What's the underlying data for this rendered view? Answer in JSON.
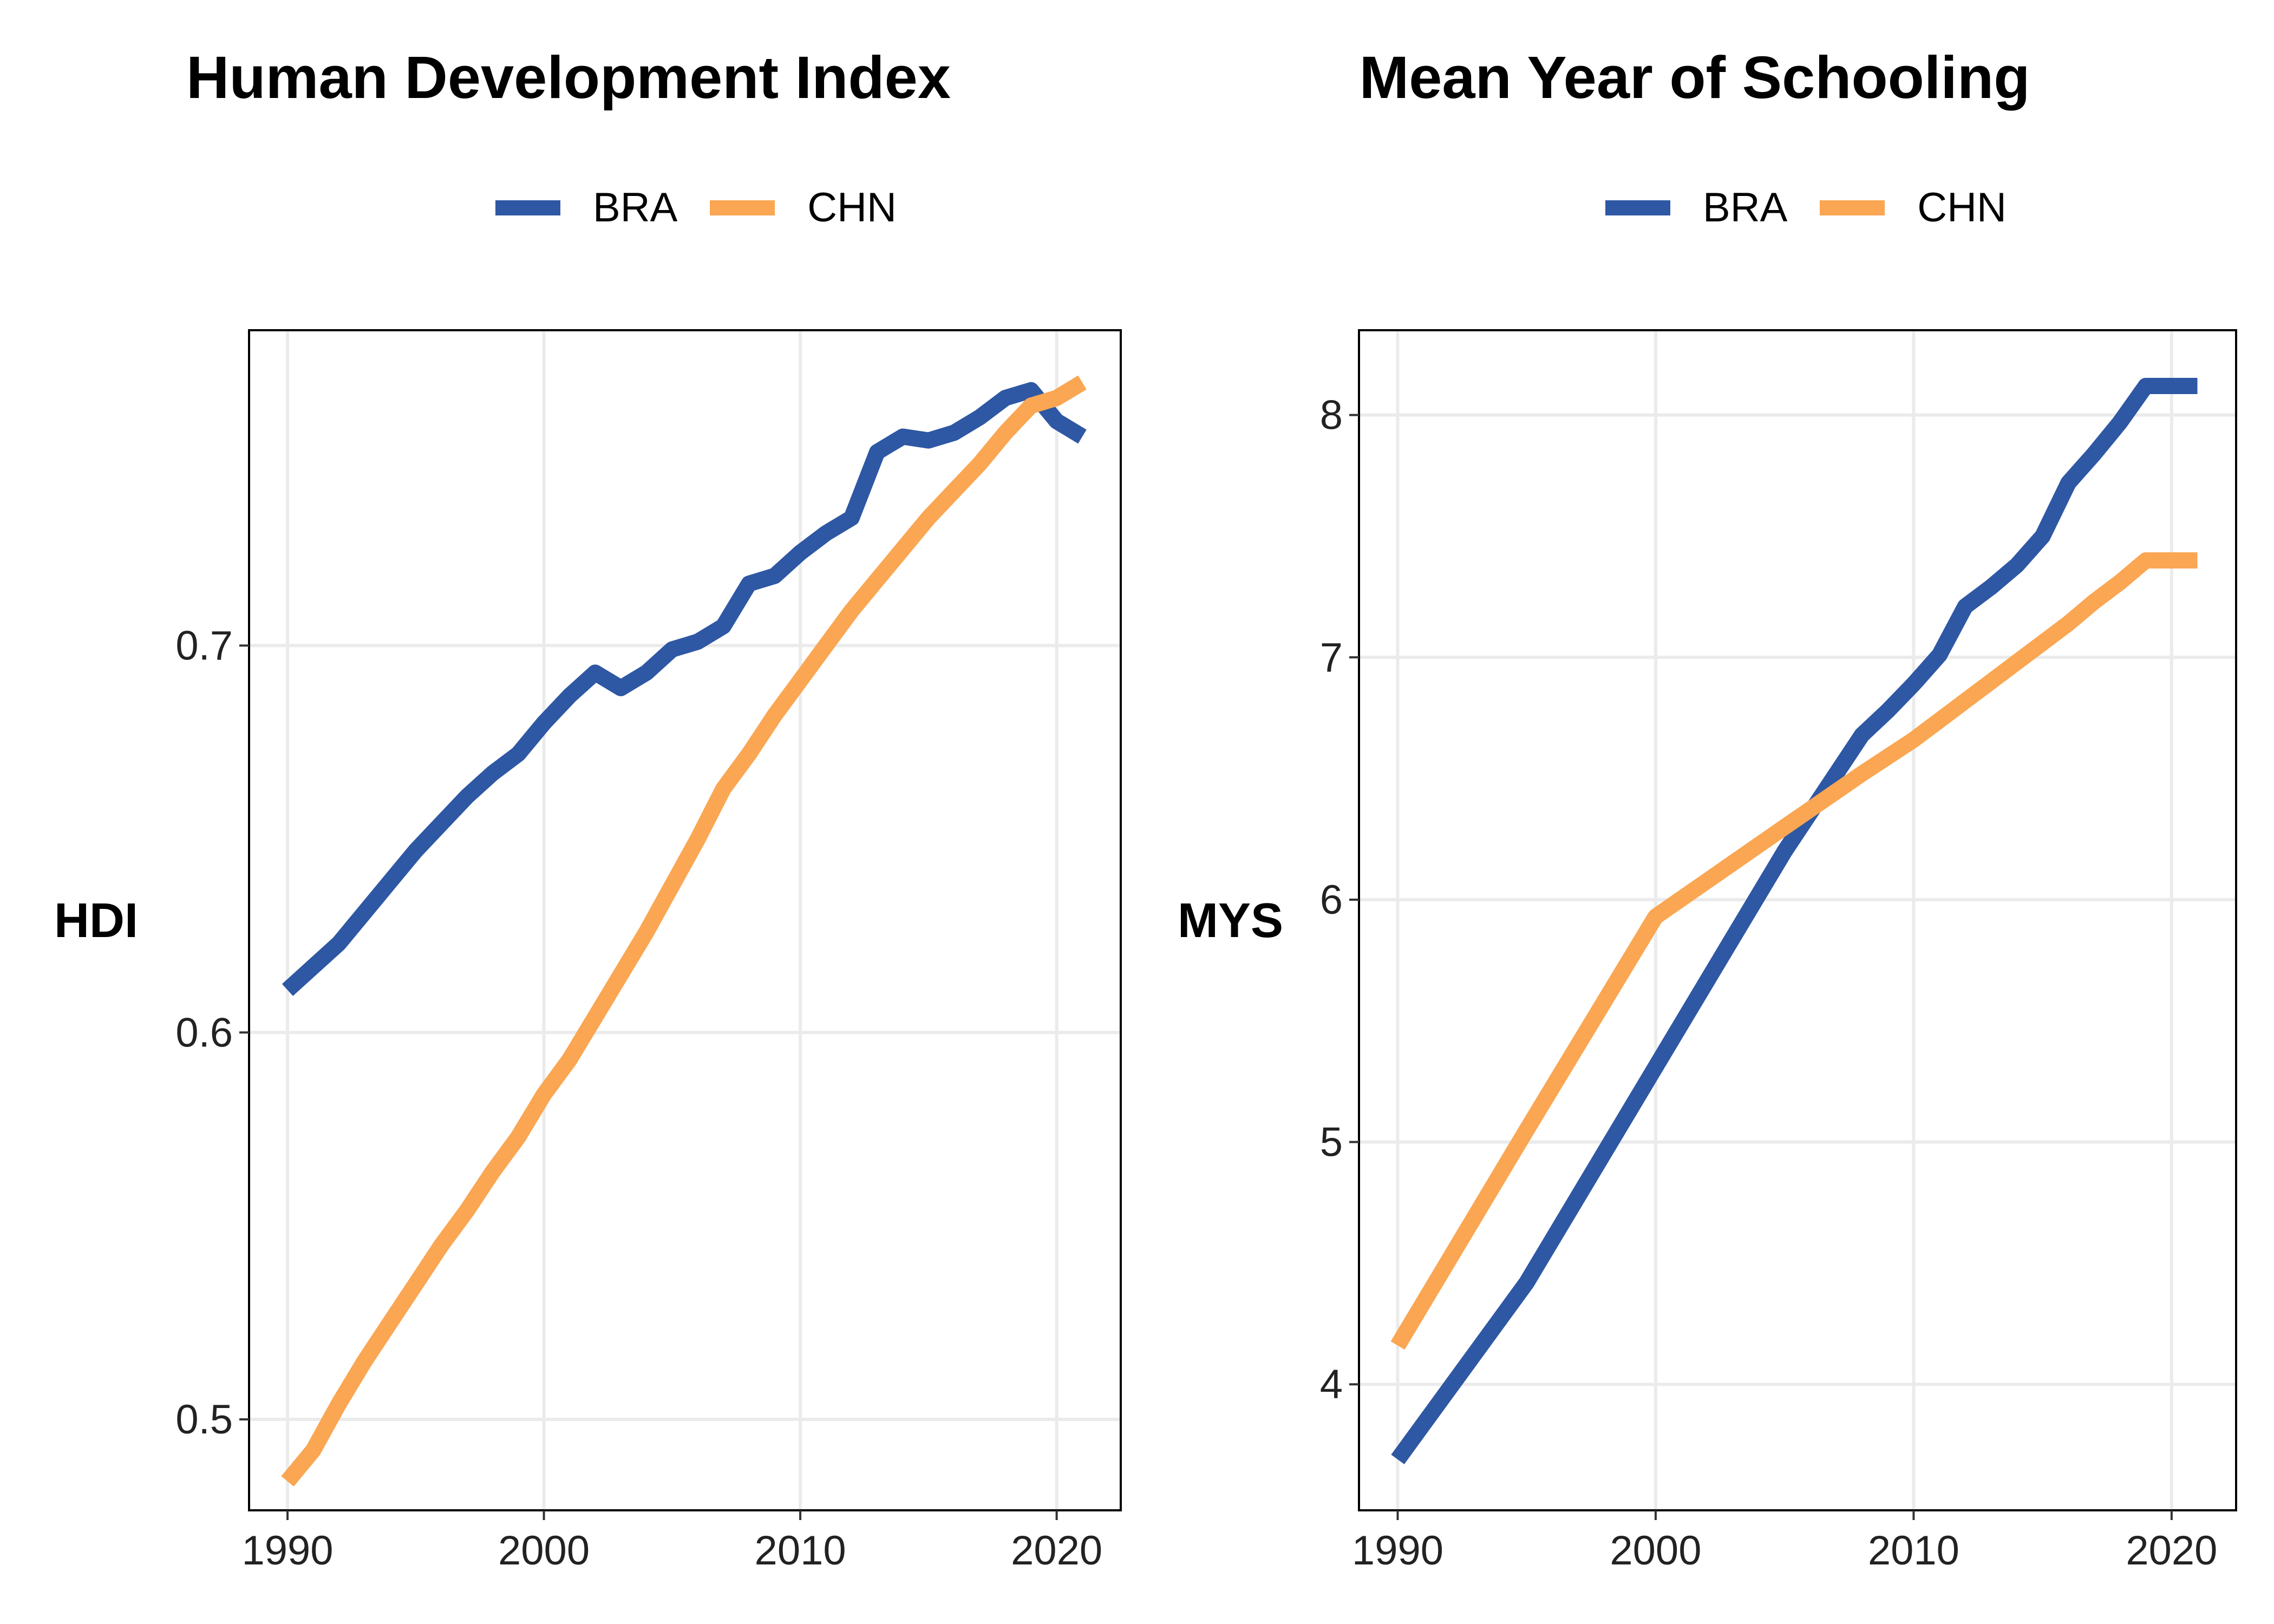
{
  "colors": {
    "BRA": "#2E57A4",
    "CHN": "#FAA652"
  },
  "chart_data": [
    {
      "type": "line",
      "title": "Human Development Index",
      "ylabel": "HDI",
      "xlabel": "",
      "xlim": [
        1988.5,
        2022.5
      ],
      "ylim": [
        0.4765,
        0.7815
      ],
      "xticks": [
        1990,
        2000,
        2010,
        2020
      ],
      "yticks": [
        0.5,
        0.6,
        0.7
      ],
      "ytick_labels": [
        "0.5",
        "0.6",
        "0.7"
      ],
      "grid": true,
      "legend_position": "top",
      "x": [
        1990,
        1991,
        1992,
        1993,
        1994,
        1995,
        1996,
        1997,
        1998,
        1999,
        2000,
        2001,
        2002,
        2003,
        2004,
        2005,
        2006,
        2007,
        2008,
        2009,
        2010,
        2011,
        2012,
        2013,
        2014,
        2015,
        2016,
        2017,
        2018,
        2019,
        2020,
        2021
      ],
      "series": [
        {
          "name": "BRA",
          "color": "#2E57A4",
          "values": [
            0.611,
            0.617,
            0.623,
            0.631,
            0.639,
            0.647,
            0.654,
            0.661,
            0.667,
            0.672,
            0.68,
            0.687,
            0.693,
            0.689,
            0.693,
            0.699,
            0.701,
            0.705,
            0.716,
            0.718,
            0.724,
            0.729,
            0.733,
            0.75,
            0.754,
            0.753,
            0.755,
            0.759,
            0.764,
            0.766,
            0.758,
            0.754
          ]
        },
        {
          "name": "CHN",
          "color": "#FAA652",
          "values": [
            0.484,
            0.492,
            0.504,
            0.515,
            0.525,
            0.535,
            0.545,
            0.554,
            0.564,
            0.573,
            0.584,
            0.593,
            0.604,
            0.615,
            0.626,
            0.638,
            0.65,
            0.663,
            0.672,
            0.682,
            0.691,
            0.7,
            0.709,
            0.717,
            0.725,
            0.733,
            0.74,
            0.747,
            0.755,
            0.762,
            0.764,
            0.768
          ]
        }
      ]
    },
    {
      "type": "line",
      "title": "Mean Year of Schooling",
      "ylabel": "MYS",
      "xlabel": "",
      "xlim": [
        1988.5,
        2022.5
      ],
      "ylim": [
        3.48,
        8.35
      ],
      "xticks": [
        1990,
        2000,
        2010,
        2020
      ],
      "yticks": [
        4,
        5,
        6,
        7,
        8
      ],
      "ytick_labels": [
        "4",
        "5",
        "6",
        "7",
        "8"
      ],
      "grid": true,
      "legend_position": "top",
      "x": [
        1990,
        1995,
        2000,
        2005,
        2008,
        2009,
        2010,
        2011,
        2012,
        2013,
        2014,
        2015,
        2016,
        2017,
        2018,
        2019,
        2020,
        2021
      ],
      "series": [
        {
          "name": "BRA",
          "color": "#2E57A4",
          "values": [
            3.69,
            4.42,
            5.31,
            6.2,
            6.68,
            6.78,
            6.89,
            7.01,
            7.21,
            7.29,
            7.38,
            7.5,
            7.72,
            7.84,
            7.97,
            8.12,
            8.12,
            8.12
          ]
        },
        {
          "name": "CHN",
          "color": "#FAA652",
          "values": [
            4.16,
            5.05,
            5.93,
            6.3,
            6.52,
            6.59,
            6.66,
            6.74,
            6.82,
            6.9,
            6.98,
            7.06,
            7.14,
            7.23,
            7.31,
            7.4,
            7.4,
            7.4
          ]
        }
      ]
    }
  ]
}
